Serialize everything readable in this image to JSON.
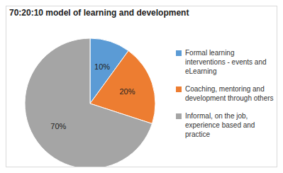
{
  "chart_data": {
    "type": "pie",
    "title": "70:20:10 model of learning and development",
    "categories": [
      "Formal learning interventions - events and eLearning",
      "Coaching, mentoring and development through others",
      "Informal, on the job, experience based and practice"
    ],
    "values": [
      10,
      20,
      70
    ],
    "value_labels": [
      "10%",
      "20%",
      "70%"
    ],
    "colors": [
      "#5B9BD5",
      "#ED7D31",
      "#A5A5A5"
    ],
    "data_labels": true,
    "legend": "right"
  }
}
